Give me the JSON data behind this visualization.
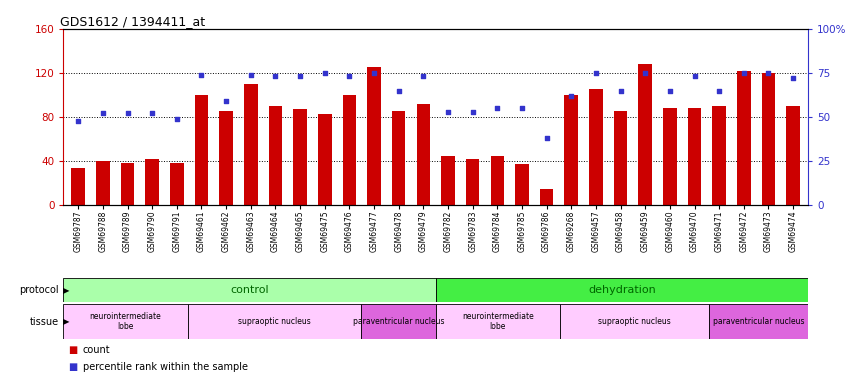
{
  "title": "GDS1612 / 1394411_at",
  "samples": [
    "GSM69787",
    "GSM69788",
    "GSM69789",
    "GSM69790",
    "GSM69791",
    "GSM69461",
    "GSM69462",
    "GSM69463",
    "GSM69464",
    "GSM69465",
    "GSM69475",
    "GSM69476",
    "GSM69477",
    "GSM69478",
    "GSM69479",
    "GSM69782",
    "GSM69783",
    "GSM69784",
    "GSM69785",
    "GSM69786",
    "GSM69268",
    "GSM69457",
    "GSM69458",
    "GSM69459",
    "GSM69460",
    "GSM69470",
    "GSM69471",
    "GSM69472",
    "GSM69473",
    "GSM69474"
  ],
  "bar_values": [
    34,
    40,
    38,
    42,
    38,
    100,
    85,
    110,
    90,
    87,
    83,
    100,
    125,
    85,
    92,
    45,
    42,
    45,
    37,
    15,
    100,
    105,
    85,
    128,
    88,
    88,
    90,
    122,
    120,
    90
  ],
  "dot_values": [
    48,
    52,
    52,
    52,
    49,
    74,
    59,
    74,
    73,
    73,
    75,
    73,
    75,
    65,
    73,
    53,
    53,
    55,
    55,
    38,
    62,
    75,
    65,
    75,
    65,
    73,
    65,
    75,
    75,
    72
  ],
  "ylim_left": [
    0,
    160
  ],
  "ylim_right": [
    0,
    100
  ],
  "yticks_left": [
    0,
    40,
    80,
    120,
    160
  ],
  "yticks_right": [
    0,
    25,
    50,
    75,
    100
  ],
  "bar_color": "#cc0000",
  "dot_color": "#3333cc",
  "protocol_groups": [
    {
      "label": "control",
      "start": 0,
      "end": 14,
      "color": "#aaffaa"
    },
    {
      "label": "dehydration",
      "start": 15,
      "end": 29,
      "color": "#44ee44"
    }
  ],
  "tissue_groups": [
    {
      "label": "neurointermediate\nlobe",
      "start": 0,
      "end": 4,
      "color": "#ffccff"
    },
    {
      "label": "supraoptic nucleus",
      "start": 5,
      "end": 11,
      "color": "#ffccff"
    },
    {
      "label": "paraventricular nucleus",
      "start": 12,
      "end": 14,
      "color": "#ee88ee"
    },
    {
      "label": "neurointermediate\nlobe",
      "start": 15,
      "end": 19,
      "color": "#ffccff"
    },
    {
      "label": "supraoptic nucleus",
      "start": 20,
      "end": 25,
      "color": "#ffccff"
    },
    {
      "label": "paraventricular nucleus",
      "start": 26,
      "end": 29,
      "color": "#ee88ee"
    }
  ]
}
